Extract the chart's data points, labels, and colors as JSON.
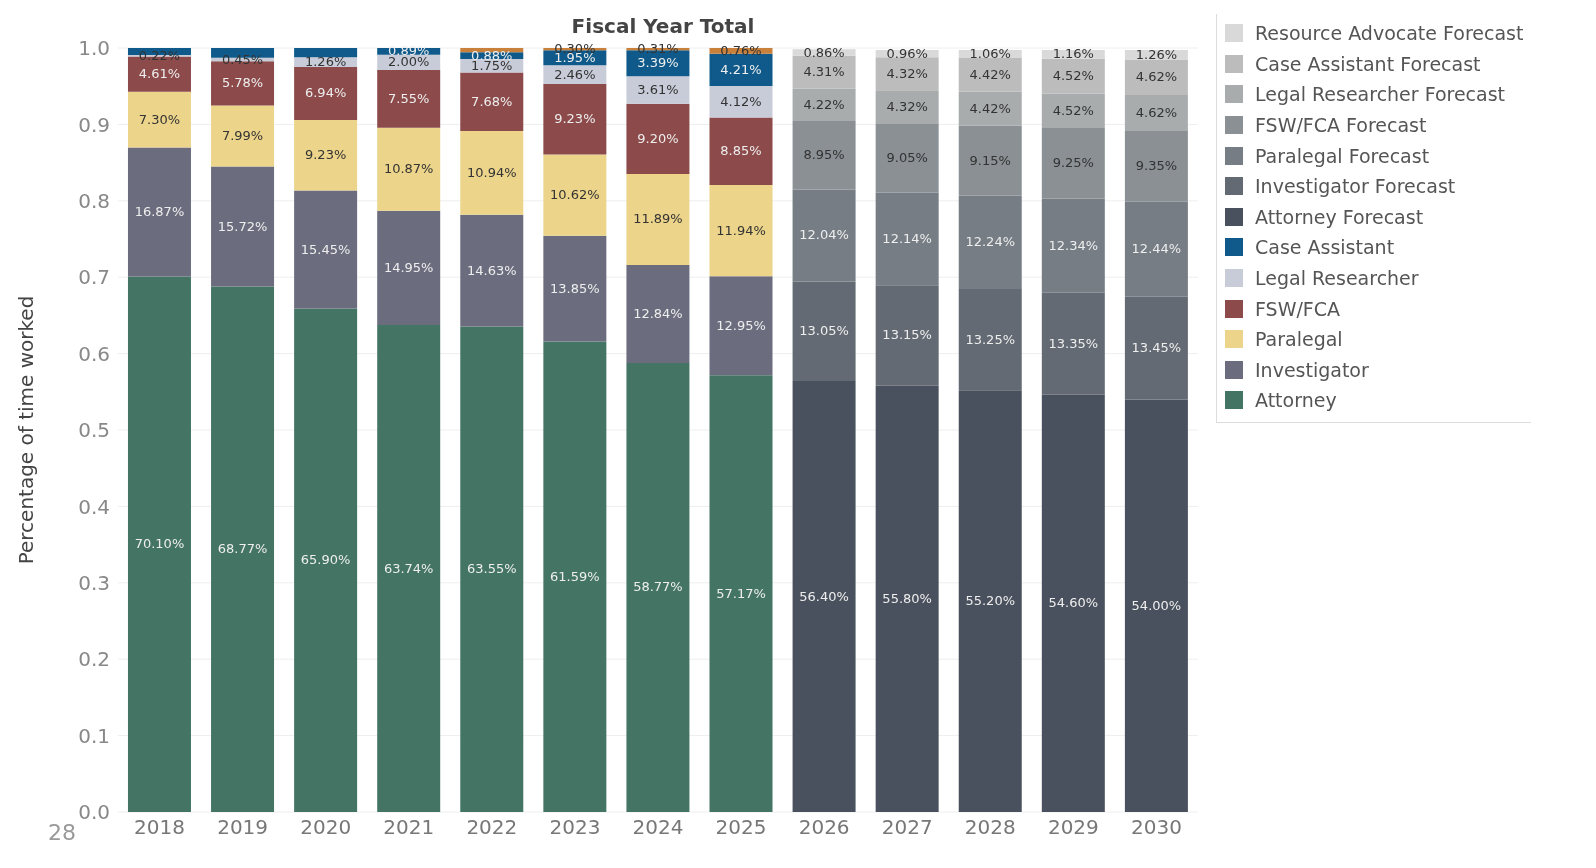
{
  "chart_data": {
    "type": "bar",
    "title": "Fiscal Year Total",
    "ylabel": "Percentage of time worked",
    "stacked": true,
    "categories": [
      "2018",
      "2019",
      "2020",
      "2021",
      "2022",
      "2023",
      "2024",
      "2025",
      "2026",
      "2027",
      "2028",
      "2029",
      "2030"
    ],
    "ylim": [
      0,
      1
    ],
    "yticks": [
      {
        "value": 0,
        "label": "0.0"
      },
      0.1,
      0.2,
      0.3,
      0.4,
      0.5,
      0.6,
      0.7,
      0.8,
      0.9,
      {
        "value": 1,
        "label": "1.0"
      }
    ],
    "grid": "y",
    "legend": "top right",
    "annotations": [
      "28"
    ],
    "series": [
      {
        "name": "Attorney",
        "color": "#437464",
        "values": [
          0.701,
          0.6877,
          0.659,
          0.6374,
          0.6355,
          0.6159,
          0.5877,
          0.5717,
          null,
          null,
          null,
          null,
          null
        ],
        "value_labels": [
          "70.10%",
          "68.77%",
          "65.90%",
          "63.74%",
          "63.55%",
          "61.59%",
          "58.77%",
          "57.17%",
          null,
          null,
          null,
          null,
          null
        ]
      },
      {
        "name": "Investigator",
        "color": "#6b6d7e",
        "values": [
          0.1687,
          0.1572,
          0.1545,
          0.1495,
          0.1463,
          0.1385,
          0.1284,
          0.1295,
          null,
          null,
          null,
          null,
          null
        ],
        "value_labels": [
          "16.87%",
          "15.72%",
          "15.45%",
          "14.95%",
          "14.63%",
          "13.85%",
          "12.84%",
          "12.95%",
          null,
          null,
          null,
          null,
          null
        ]
      },
      {
        "name": "Paralegal",
        "color": "#ecd48a",
        "values": [
          0.073,
          0.0799,
          0.0923,
          0.1087,
          0.1094,
          0.1062,
          0.1189,
          0.1194,
          null,
          null,
          null,
          null,
          null
        ],
        "value_labels": [
          "7.30%",
          "7.99%",
          "9.23%",
          "10.87%",
          "10.94%",
          "10.62%",
          "11.89%",
          "11.94%",
          null,
          null,
          null,
          null,
          null
        ]
      },
      {
        "name": "FSW/FCA",
        "color": "#8c4a4a",
        "values": [
          0.0461,
          0.0578,
          0.0694,
          0.0755,
          0.0768,
          0.0923,
          0.092,
          0.0885,
          null,
          null,
          null,
          null,
          null
        ],
        "value_labels": [
          "4.61%",
          "5.78%",
          "6.94%",
          "7.55%",
          "7.68%",
          "9.23%",
          "9.20%",
          "8.85%",
          null,
          null,
          null,
          null,
          null
        ]
      },
      {
        "name": "Legal Researcher",
        "color": "#c8ccd8",
        "values": [
          0.0022,
          0.0045,
          0.0126,
          0.02,
          0.0175,
          0.0246,
          0.0361,
          0.0412,
          null,
          null,
          null,
          null,
          null
        ],
        "value_labels": [
          "0.22%",
          "0.45%",
          "1.26%",
          "2.00%",
          "1.75%",
          "2.46%",
          "3.61%",
          "4.12%",
          null,
          null,
          null,
          null,
          null
        ]
      },
      {
        "name": "Case Assistant",
        "color": "#0f5a8a",
        "values": [
          0.009,
          0.0129,
          0.0122,
          0.0089,
          0.0088,
          0.0195,
          0.0339,
          0.0421,
          null,
          null,
          null,
          null,
          null
        ],
        "value_labels": [
          null,
          null,
          null,
          "0.89%",
          "0.88%",
          "1.95%",
          "3.39%",
          "4.21%",
          null,
          null,
          null,
          null,
          null
        ]
      },
      {
        "color": "#c8803a",
        "values": [
          null,
          null,
          null,
          null,
          0.0057,
          0.003,
          0.0031,
          0.0076,
          null,
          null,
          null,
          null,
          null
        ],
        "value_labels": [
          null,
          null,
          null,
          null,
          null,
          "0.30%",
          "0.31%",
          "0.76%",
          null,
          null,
          null,
          null,
          null
        ]
      },
      {
        "name": "Attorney Forecast",
        "color": "#4a515e",
        "values": [
          null,
          null,
          null,
          null,
          null,
          null,
          null,
          null,
          0.564,
          0.558,
          0.552,
          0.546,
          0.54
        ],
        "value_labels": [
          null,
          null,
          null,
          null,
          null,
          null,
          null,
          null,
          "56.40%",
          "55.80%",
          "55.20%",
          "54.60%",
          "54.00%"
        ]
      },
      {
        "name": "Investigator Forecast",
        "color": "#636a73",
        "values": [
          null,
          null,
          null,
          null,
          null,
          null,
          null,
          null,
          0.1305,
          0.1315,
          0.1325,
          0.1335,
          0.1345
        ],
        "value_labels": [
          null,
          null,
          null,
          null,
          null,
          null,
          null,
          null,
          "13.05%",
          "13.15%",
          "13.25%",
          "13.35%",
          "13.45%"
        ]
      },
      {
        "name": "Paralegal Forecast",
        "color": "#767d84",
        "values": [
          null,
          null,
          null,
          null,
          null,
          null,
          null,
          null,
          0.1204,
          0.1214,
          0.1224,
          0.1234,
          0.1244
        ],
        "value_labels": [
          null,
          null,
          null,
          null,
          null,
          null,
          null,
          null,
          "12.04%",
          "12.14%",
          "12.24%",
          "12.34%",
          "12.44%"
        ]
      },
      {
        "name": "FSW/FCA Forecast",
        "color": "#8a9094",
        "values": [
          null,
          null,
          null,
          null,
          null,
          null,
          null,
          null,
          0.0895,
          0.0905,
          0.0915,
          0.0925,
          0.0935
        ],
        "value_labels": [
          null,
          null,
          null,
          null,
          null,
          null,
          null,
          null,
          "8.95%",
          "9.05%",
          "9.15%",
          "9.25%",
          "9.35%"
        ]
      },
      {
        "name": "Legal Researcher Forecast",
        "color": "#a8acad",
        "values": [
          null,
          null,
          null,
          null,
          null,
          null,
          null,
          null,
          0.0422,
          0.0432,
          0.0442,
          0.0452,
          0.0462
        ],
        "value_labels": [
          null,
          null,
          null,
          null,
          null,
          null,
          null,
          null,
          "4.22%",
          "4.32%",
          "4.42%",
          "4.52%",
          "4.62%"
        ]
      },
      {
        "name": "Case Assistant Forecast",
        "color": "#bcbcbc",
        "values": [
          null,
          null,
          null,
          null,
          null,
          null,
          null,
          null,
          0.0431,
          0.0432,
          0.0442,
          0.0452,
          0.0462
        ],
        "value_labels": [
          null,
          null,
          null,
          null,
          null,
          null,
          null,
          null,
          "4.31%",
          "4.32%",
          "4.42%",
          "4.52%",
          "4.62%"
        ]
      },
      {
        "name": "Resource Advocate Forecast",
        "color": "#d9d9d9",
        "values": [
          null,
          null,
          null,
          null,
          null,
          null,
          null,
          null,
          0.0086,
          0.0096,
          0.0106,
          0.0116,
          0.0126
        ],
        "value_labels": [
          null,
          null,
          null,
          null,
          null,
          null,
          null,
          null,
          "0.86%",
          "0.96%",
          "1.06%",
          "1.16%",
          "1.26%"
        ]
      }
    ]
  }
}
